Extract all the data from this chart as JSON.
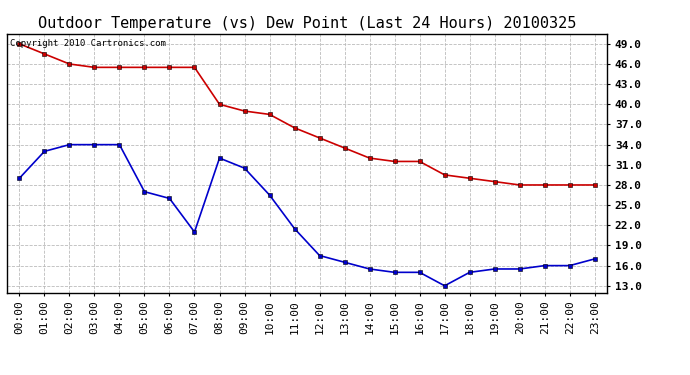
{
  "title": "Outdoor Temperature (vs) Dew Point (Last 24 Hours) 20100325",
  "copyright_text": "Copyright 2010 Cartronics.com",
  "hours": [
    "00:00",
    "01:00",
    "02:00",
    "03:00",
    "04:00",
    "05:00",
    "06:00",
    "07:00",
    "08:00",
    "09:00",
    "10:00",
    "11:00",
    "12:00",
    "13:00",
    "14:00",
    "15:00",
    "16:00",
    "17:00",
    "18:00",
    "19:00",
    "20:00",
    "21:00",
    "22:00",
    "23:00"
  ],
  "temp_red": [
    49.0,
    47.5,
    46.0,
    45.5,
    45.5,
    45.5,
    45.5,
    45.5,
    40.0,
    39.0,
    38.5,
    36.5,
    35.0,
    33.5,
    32.0,
    31.5,
    31.5,
    29.5,
    29.0,
    28.5,
    28.0,
    28.0,
    28.0,
    28.0
  ],
  "dew_blue": [
    29.0,
    33.0,
    34.0,
    34.0,
    34.0,
    27.0,
    26.0,
    21.0,
    32.0,
    30.5,
    26.5,
    21.5,
    17.5,
    16.5,
    15.5,
    15.0,
    15.0,
    13.0,
    15.0,
    15.5,
    15.5,
    16.0,
    16.0,
    17.0
  ],
  "ylim_min": 12.0,
  "ylim_max": 50.5,
  "yticks": [
    13.0,
    16.0,
    19.0,
    22.0,
    25.0,
    28.0,
    31.0,
    34.0,
    37.0,
    40.0,
    43.0,
    46.0,
    49.0
  ],
  "background_color": "#ffffff",
  "plot_bg_color": "#ffffff",
  "red_color": "#cc0000",
  "blue_color": "#0000cc",
  "grid_color": "#bbbbbb",
  "title_fontsize": 11,
  "tick_fontsize": 8,
  "marker": "s",
  "marker_size": 3,
  "line_width": 1.2
}
